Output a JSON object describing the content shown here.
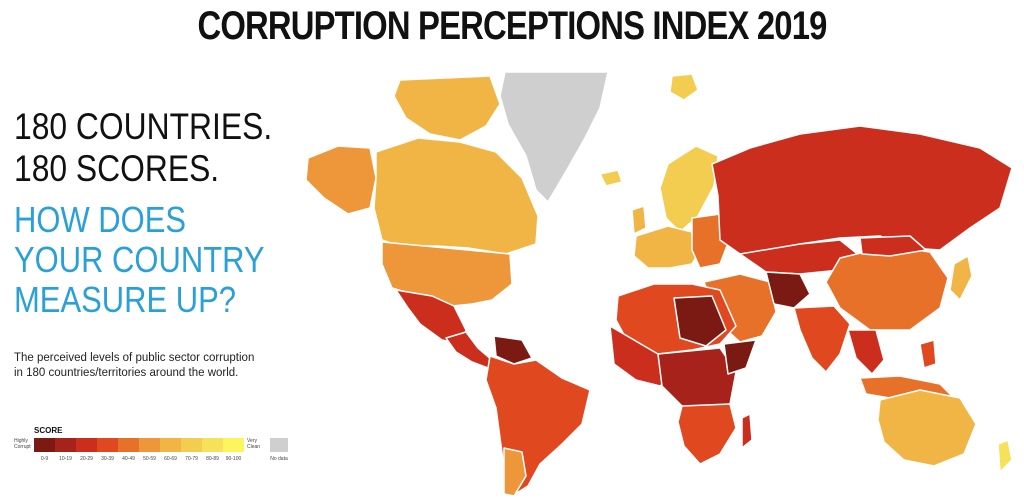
{
  "title": "CORRUPTION PERCEPTIONS INDEX 2019",
  "headline": [
    "180 COUNTRIES.",
    "180 SCORES."
  ],
  "question": [
    "HOW DOES",
    "YOUR COUNTRY",
    "MEASURE UP?"
  ],
  "description": [
    "The perceived levels of public sector corruption",
    "in 180 countries/territories around the world."
  ],
  "legend": {
    "title": "SCORE",
    "low_label": "Highly Corrupt",
    "high_label": "Very Clean",
    "no_data_label": "No data",
    "no_data_color": "#cfcfcf",
    "bins": [
      {
        "range": "0-9",
        "color": "#7a1a12"
      },
      {
        "range": "10-19",
        "color": "#a7221a"
      },
      {
        "range": "20-29",
        "color": "#cc2e1e"
      },
      {
        "range": "30-39",
        "color": "#e0481f"
      },
      {
        "range": "40-49",
        "color": "#e8712a"
      },
      {
        "range": "50-59",
        "color": "#ee963a"
      },
      {
        "range": "60-69",
        "color": "#f1b546"
      },
      {
        "range": "70-79",
        "color": "#f3cd4f"
      },
      {
        "range": "80-89",
        "color": "#f6e15a"
      },
      {
        "range": "90-100",
        "color": "#fdf55c"
      }
    ]
  }
}
